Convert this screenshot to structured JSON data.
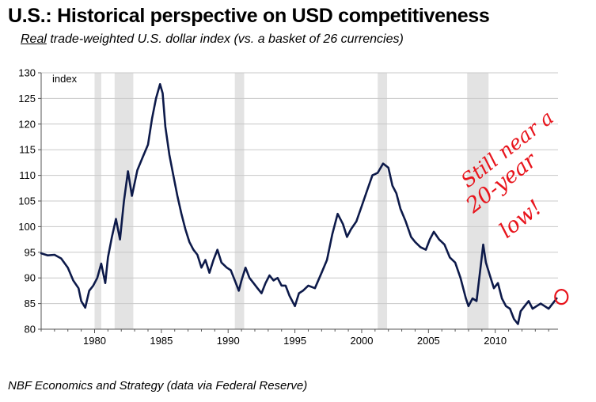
{
  "title": "U.S.: Historical perspective on USD competitiveness",
  "subtitle_emphasis": "Real",
  "subtitle_rest": " trade-weighted U.S. dollar index (vs. a basket of 26 currencies)",
  "source": "NBF Economics and Strategy (data via Federal Reserve)",
  "annotation": {
    "lines": [
      "Still near a",
      "20-year",
      "low!"
    ],
    "color": "#e8141c"
  },
  "chart_data": {
    "type": "line",
    "title": "Real trade-weighted U.S. dollar index",
    "xlabel": "",
    "ylabel": "index",
    "xlim": [
      1976.0,
      2014.7
    ],
    "ylim": [
      80,
      130
    ],
    "x_ticks": [
      1980,
      1985,
      1990,
      1995,
      2000,
      2005,
      2010
    ],
    "y_ticks": [
      80,
      85,
      90,
      95,
      100,
      105,
      110,
      115,
      120,
      125,
      130
    ],
    "grid": "horizontal",
    "line_color": "#0d1a4a",
    "recession_color": "#e3e3e3",
    "recessions": [
      {
        "start": 1980.0,
        "end": 1980.5
      },
      {
        "start": 1981.5,
        "end": 1982.9
      },
      {
        "start": 1990.5,
        "end": 1991.2
      },
      {
        "start": 2001.2,
        "end": 2001.9
      },
      {
        "start": 2007.9,
        "end": 2009.5
      }
    ],
    "series": [
      {
        "name": "Real trade-weighted USD index",
        "x": [
          1976.0,
          1976.5,
          1977.0,
          1977.5,
          1978.0,
          1978.4,
          1978.8,
          1979.0,
          1979.3,
          1979.6,
          1979.9,
          1980.2,
          1980.5,
          1980.8,
          1981.0,
          1981.3,
          1981.6,
          1981.9,
          1982.2,
          1982.5,
          1982.8,
          1983.2,
          1983.6,
          1984.0,
          1984.3,
          1984.6,
          1984.9,
          1985.1,
          1985.3,
          1985.6,
          1985.9,
          1986.2,
          1986.5,
          1986.8,
          1987.1,
          1987.4,
          1987.7,
          1988.0,
          1988.3,
          1988.6,
          1988.9,
          1989.2,
          1989.5,
          1989.9,
          1990.2,
          1990.5,
          1990.8,
          1991.0,
          1991.3,
          1991.6,
          1991.9,
          1992.2,
          1992.5,
          1992.8,
          1993.1,
          1993.4,
          1993.7,
          1994.0,
          1994.3,
          1994.6,
          1995.0,
          1995.3,
          1995.6,
          1996.0,
          1996.5,
          1997.0,
          1997.4,
          1997.8,
          1998.2,
          1998.6,
          1998.9,
          1999.2,
          1999.6,
          2000.0,
          2000.4,
          2000.8,
          2001.2,
          2001.6,
          2002.0,
          2002.3,
          2002.6,
          2002.9,
          2003.3,
          2003.7,
          2004.0,
          2004.4,
          2004.8,
          2005.1,
          2005.4,
          2005.8,
          2006.2,
          2006.6,
          2007.0,
          2007.4,
          2007.8,
          2008.0,
          2008.3,
          2008.6,
          2008.9,
          2009.1,
          2009.3,
          2009.6,
          2009.9,
          2010.2,
          2010.5,
          2010.8,
          2011.1,
          2011.4,
          2011.7,
          2011.9,
          2012.2,
          2012.5,
          2012.8,
          2013.1,
          2013.4,
          2013.7,
          2014.0,
          2014.3,
          2014.6
        ],
        "y": [
          94.8,
          94.4,
          94.5,
          93.8,
          92.0,
          89.5,
          88.0,
          85.5,
          84.2,
          87.5,
          88.5,
          90.0,
          92.8,
          89.0,
          94.0,
          98.0,
          101.5,
          97.5,
          105.0,
          110.8,
          106.0,
          111.0,
          113.5,
          116.0,
          121.0,
          125.0,
          127.8,
          126.0,
          119.5,
          114.0,
          110.0,
          106.0,
          102.5,
          99.5,
          97.0,
          95.5,
          94.5,
          92.0,
          93.5,
          91.0,
          93.5,
          95.5,
          93.0,
          92.0,
          91.5,
          89.5,
          87.5,
          89.5,
          92.0,
          90.0,
          89.0,
          88.0,
          87.0,
          89.0,
          90.5,
          89.5,
          90.0,
          88.5,
          88.5,
          86.5,
          84.5,
          87.0,
          87.5,
          88.5,
          88.0,
          91.0,
          93.5,
          98.5,
          102.5,
          100.5,
          98.0,
          99.5,
          101.0,
          104.0,
          107.0,
          110.0,
          110.5,
          112.3,
          111.5,
          108.0,
          106.5,
          103.5,
          101.0,
          98.0,
          97.0,
          96.0,
          95.5,
          97.5,
          99.0,
          97.5,
          96.5,
          94.0,
          93.0,
          90.0,
          86.0,
          84.5,
          86.0,
          85.5,
          92.0,
          96.5,
          93.0,
          90.5,
          88.0,
          89.0,
          86.0,
          84.5,
          84.0,
          82.0,
          81.0,
          83.5,
          84.5,
          85.5,
          84.0,
          84.5,
          85.0,
          84.5,
          84.0,
          85.0,
          86.0
        ]
      }
    ]
  }
}
